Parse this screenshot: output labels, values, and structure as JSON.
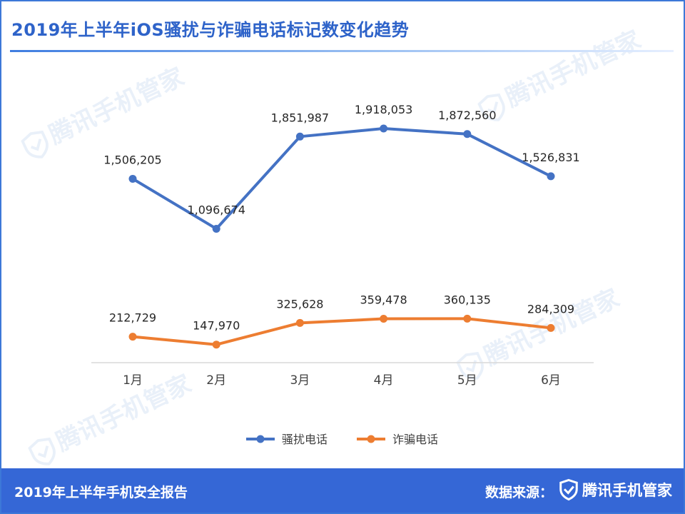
{
  "header": {
    "title": "2019年上半年iOS骚扰与诈骗电话标记数变化趋势"
  },
  "watermark": {
    "text": "腾讯手机管家"
  },
  "chart_data": {
    "type": "line",
    "categories": [
      "1月",
      "2月",
      "3月",
      "4月",
      "5月",
      "6月"
    ],
    "series": [
      {
        "name": "骚扰电话",
        "color": "#4472c4",
        "values": [
          1506205,
          1096674,
          1851987,
          1918053,
          1872560,
          1526831
        ],
        "labels": [
          "1,506,205",
          "1,096,674",
          "1,851,987",
          "1,918,053",
          "1,872,560",
          "1,526,831"
        ]
      },
      {
        "name": "诈骗电话",
        "color": "#ed7d31",
        "values": [
          212729,
          147970,
          325628,
          359478,
          360135,
          284309
        ],
        "labels": [
          "212,729",
          "147,970",
          "325,628",
          "359,478",
          "360,135",
          "284,309"
        ]
      }
    ],
    "ylim": [
      0,
      2000000
    ],
    "grid": false,
    "legend": "bottom"
  },
  "footer": {
    "report_title": "2019年上半年手机安全报告",
    "source_label": "数据来源：",
    "brand_name": "腾讯手机管家"
  },
  "colors": {
    "accent": "#3567d6",
    "title": "#2e63c9"
  }
}
